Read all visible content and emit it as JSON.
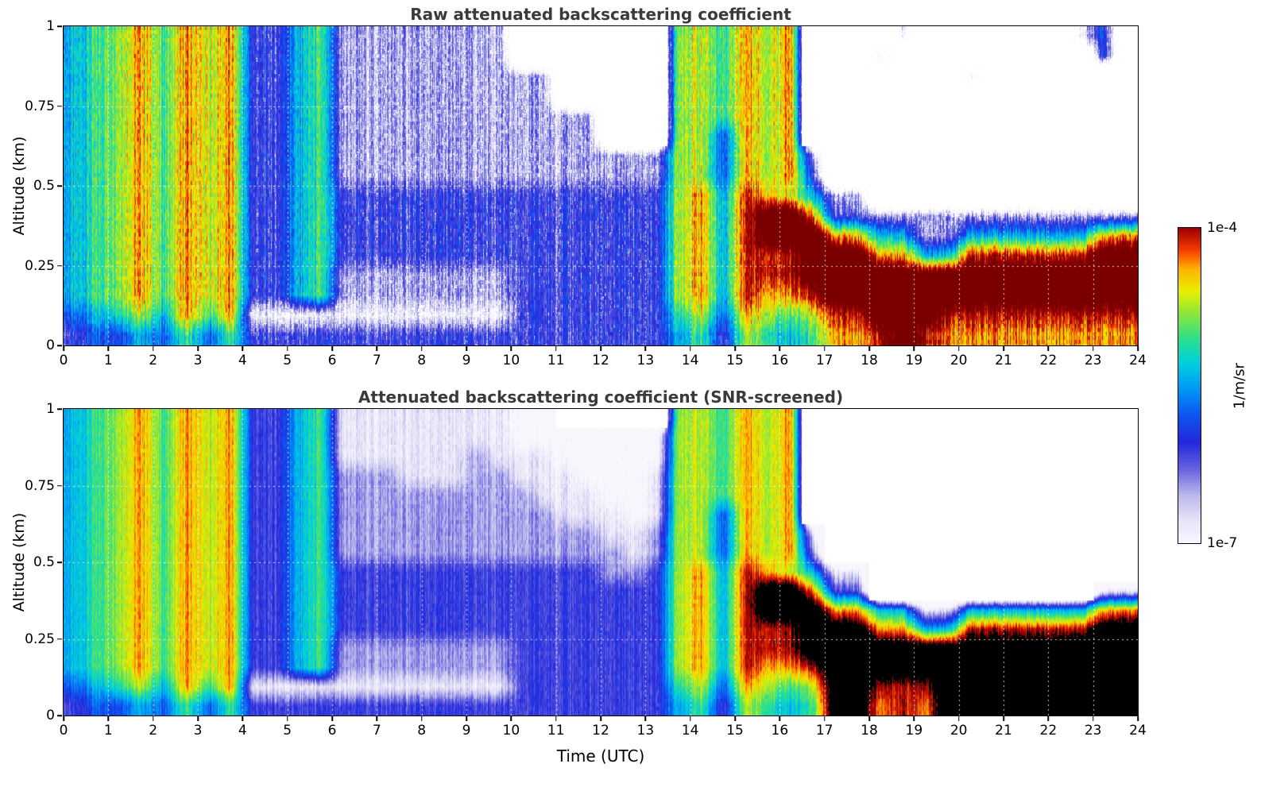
{
  "figure": {
    "background": "#ffffff"
  },
  "axes": {
    "x": {
      "label": "Time (UTC)",
      "min": 0,
      "max": 24,
      "ticks": [
        0,
        1,
        2,
        3,
        4,
        5,
        6,
        7,
        8,
        9,
        10,
        11,
        12,
        13,
        14,
        15,
        16,
        17,
        18,
        19,
        20,
        21,
        22,
        23,
        24
      ],
      "gridlines": "dotted every 1 hour"
    },
    "y": {
      "label": "Altitude (km)",
      "min": 0,
      "max": 1,
      "ticks": [
        "0",
        "0.25",
        "0.5",
        "0.75",
        "1"
      ],
      "gridlines": "dotted every 0.25 km"
    }
  },
  "colorbar": {
    "label": "1/m/sr",
    "max_label": "1e-4",
    "min_label": "1e-7"
  },
  "colormap": {
    "stops": [
      [
        0.0,
        "#f8f6fd"
      ],
      [
        0.07,
        "#e8e5f8"
      ],
      [
        0.15,
        "#bcb9ec"
      ],
      [
        0.23,
        "#6a66e0"
      ],
      [
        0.32,
        "#2428dc"
      ],
      [
        0.4,
        "#0f52f0"
      ],
      [
        0.49,
        "#0099f5"
      ],
      [
        0.57,
        "#00cfe0"
      ],
      [
        0.65,
        "#2ee08a"
      ],
      [
        0.73,
        "#8ee63a"
      ],
      [
        0.8,
        "#e8f000"
      ],
      [
        0.87,
        "#ffb300"
      ],
      [
        0.93,
        "#f53d00"
      ],
      [
        1.0,
        "#9e0000"
      ]
    ],
    "no_data_color": "#ffffff"
  },
  "scale": {
    "vmin": "1e-7",
    "vmax": "1e-4",
    "units": "1/m/sr",
    "type": "log10"
  },
  "chart_data": [
    {
      "type": "heatmap",
      "title": "Raw attenuated backscattering coefficient",
      "x_hours": {
        "start": 0.0,
        "step": 0.5,
        "count": 48
      },
      "y_km": {
        "start": 1.0,
        "step": -0.0625,
        "count": 16
      },
      "x_range": [
        0,
        24
      ],
      "y_range": [
        0,
        1
      ],
      "value_range": [
        "1e-7",
        "1e-4"
      ],
      "value_units": "1/m/sr",
      "z_encoding": "rows listed top (1 km) to bottom (0 km); segments join to 48 half-hour columns; '.'=no signal (white), digits 0-9 = log10(backscatter) from -7.2 to -4.0, 'X'=saturated above 1e-4",
      "over_color": "#7a0000",
      "dither_speckle": true,
      "rows": [
        [
          "56786878",
          "3356",
          "222222",
          "22......",
          ".7",
          "76",
          "87",
          "8.",
          "...1.......14."
        ],
        [
          "56786878",
          "3356",
          "222222",
          "22......",
          ".7",
          "76",
          "87",
          "8.",
          "..1.........4."
        ],
        [
          "56786878",
          "3356",
          "222222",
          "2222....",
          ".7",
          "76",
          "87",
          "8.",
          "......1......."
        ],
        [
          "56786878",
          "3356",
          "222222",
          "2222....",
          ".7",
          "76",
          "87",
          "8.",
          ".............."
        ],
        [
          "56786878",
          "3356",
          "222222",
          "222222..",
          ".7",
          "76",
          "87",
          "8.",
          ".............."
        ],
        [
          "56786878",
          "3356",
          "222222",
          "222222..",
          ".7",
          "74",
          "87",
          "8.",
          ".............."
        ],
        [
          "56786878",
          "3356",
          "222222",
          "22222222",
          "27",
          "74",
          "87",
          "82",
          ".............."
        ],
        [
          "56786878",
          "3356",
          "222222",
          "22222222",
          "27",
          "74",
          "87",
          "83",
          ".............."
        ],
        [
          "56786878",
          "3356",
          "333333",
          "33333333",
          "37",
          "85",
          "98",
          "75",
          "22............"
        ],
        [
          "56786878",
          "3356",
          "333333",
          "33333333",
          "37",
          "85",
          "9X",
          "X8",
          "33222222222222"
        ],
        [
          "56786878",
          "3356",
          "333333",
          "33333333",
          "37",
          "85",
          "9X",
          "XX",
          "88552255555588"
        ],
        [
          "56786878",
          "3356",
          "333333",
          "33333333",
          "37",
          "85",
          "99",
          "9X",
          "XX8855999999XX"
        ],
        [
          "56786878",
          "3356",
          "222222",
          "22333333",
          "37",
          "85",
          "99",
          "9X",
          "XXXXXXXXXXXXXX"
        ],
        [
          "56786878",
          "3356",
          "222222",
          "22333333",
          "37",
          "85",
          "98",
          "89",
          "XXXXXXXXXXXXXX"
        ],
        [
          "45675868",
          "1111",
          "111111",
          "11333333",
          "36",
          "74",
          "87",
          "67",
          "99XXX999999999"
        ],
        [
          "34454646",
          "3333",
          "333333",
          "33333333",
          "35",
          "63",
          "76",
          "56",
          "889X9888888888"
        ]
      ]
    },
    {
      "type": "heatmap",
      "title": "Attenuated backscattering coefficient (SNR-screened)",
      "x_hours": {
        "start": 0.0,
        "step": 0.5,
        "count": 48
      },
      "y_km": {
        "start": 1.0,
        "step": -0.0625,
        "count": 16
      },
      "x_range": [
        0,
        24
      ],
      "y_range": [
        0,
        1
      ],
      "value_range": [
        "1e-7",
        "1e-4"
      ],
      "value_units": "1/m/sr",
      "z_encoding": "rows listed top (1 km) to bottom (0 km); segments join to 48 half-hour columns; '.'=screened out (white), digits 0-9 = log10(backscatter) from -7.2 to -4.0, 'X'=saturated above 1e-4 (rendered black)",
      "over_color": "#000000",
      "dither_speckle": false,
      "rows": [
        [
          "56786878",
          "3356",
          "111111",
          "1100....",
          ".7",
          "76",
          "87",
          "8.",
          ".............."
        ],
        [
          "56786878",
          "3356",
          "111111",
          "11000000",
          "07",
          "76",
          "87",
          "8.",
          ".............."
        ],
        [
          "56786878",
          "3356",
          "111111",
          "21110000",
          "07",
          "76",
          "87",
          "8.",
          ".............."
        ],
        [
          "56786878",
          "3356",
          "222111",
          "22111000",
          "17",
          "76",
          "87",
          "8.",
          ".............."
        ],
        [
          "56786878",
          "3356",
          "222222",
          "22211100",
          "17",
          "76",
          "87",
          "8.",
          ".............."
        ],
        [
          "56786878",
          "3356",
          "222222",
          "22221110",
          "17",
          "74",
          "87",
          "8.",
          ".............."
        ],
        [
          "56786878",
          "3356",
          "222222",
          "22222211",
          "27",
          "74",
          "87",
          "81",
          ".............."
        ],
        [
          "56786878",
          "3356",
          "222222",
          "22222221",
          "27",
          "74",
          "87",
          "82",
          ".............."
        ],
        [
          "56786878",
          "3356",
          "333333",
          "33333322",
          "37",
          "85",
          "98",
          "75",
          "11............"
        ],
        [
          "56786878",
          "3356",
          "333333",
          "33333333",
          "37",
          "85",
          "9X",
          "X8",
          "33..........11"
        ],
        [
          "56786878",
          "3356",
          "333333",
          "33333333",
          "37",
          "85",
          "9X",
          "XX",
          "88551155555588"
        ],
        [
          "56786878",
          "3356",
          "333333",
          "33333333",
          "37",
          "85",
          "99",
          "9X",
          "XX8855999999XX"
        ],
        [
          "56786878",
          "3356",
          "222222",
          "22333333",
          "37",
          "85",
          "99",
          "9X",
          "XXXXXXXXXXXXXX"
        ],
        [
          "56786878",
          "3356",
          "222222",
          "22333333",
          "37",
          "85",
          "98",
          "89",
          "XXXXXXXXXXXXXX"
        ],
        [
          "45675868",
          "1111",
          "111111",
          "11333333",
          "36",
          "74",
          "87",
          "67",
          "XX999XXXXXXXXX"
        ],
        [
          "34454646",
          "3333",
          "333333",
          "33333333",
          "35",
          "63",
          "76",
          "56",
          "XX898XXXXXXXXX"
        ]
      ]
    }
  ]
}
